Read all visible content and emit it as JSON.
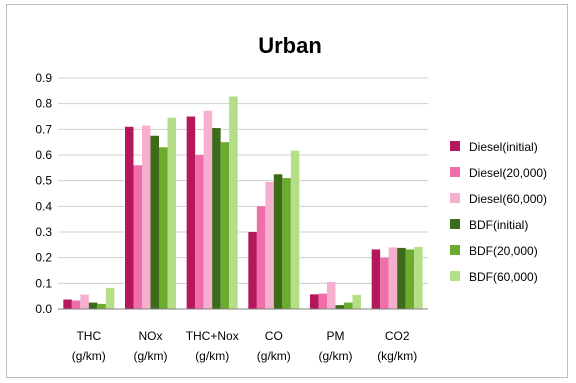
{
  "chart_data": {
    "type": "bar",
    "title": "Urban",
    "categories": [
      [
        "THC",
        "(g/km)"
      ],
      [
        "NOx",
        "(g/km)"
      ],
      [
        "THC+Nox",
        "(g/km)"
      ],
      [
        "CO",
        "(g/km)"
      ],
      [
        "PM",
        "(g/km)"
      ],
      [
        "CO2",
        "(kg/km)"
      ]
    ],
    "series": [
      {
        "name": "Diesel(initial)",
        "color": "#b5175c",
        "values": [
          0.037,
          0.71,
          0.75,
          0.3,
          0.057,
          0.232
        ]
      },
      {
        "name": "Diesel(20,000)",
        "color": "#f06ea9",
        "values": [
          0.033,
          0.56,
          0.6,
          0.4,
          0.06,
          0.2
        ]
      },
      {
        "name": "Diesel(60,000)",
        "color": "#f7afcf",
        "values": [
          0.056,
          0.715,
          0.772,
          0.495,
          0.105,
          0.24
        ]
      },
      {
        "name": "BDF(initial)",
        "color": "#3d6b1a",
        "values": [
          0.025,
          0.675,
          0.705,
          0.525,
          0.015,
          0.238
        ]
      },
      {
        "name": "BDF(20,000)",
        "color": "#6bab2e",
        "values": [
          0.02,
          0.63,
          0.65,
          0.51,
          0.025,
          0.232
        ]
      },
      {
        "name": "BDF(60,000)",
        "color": "#b4df87",
        "values": [
          0.082,
          0.745,
          0.828,
          0.617,
          0.055,
          0.242
        ]
      }
    ],
    "yticks": [
      "0.0",
      "0.1",
      "0.2",
      "0.3",
      "0.4",
      "0.5",
      "0.6",
      "0.7",
      "0.8",
      "0.9"
    ],
    "ylim": [
      0,
      0.9
    ],
    "grid": true,
    "legend_position": "right"
  }
}
